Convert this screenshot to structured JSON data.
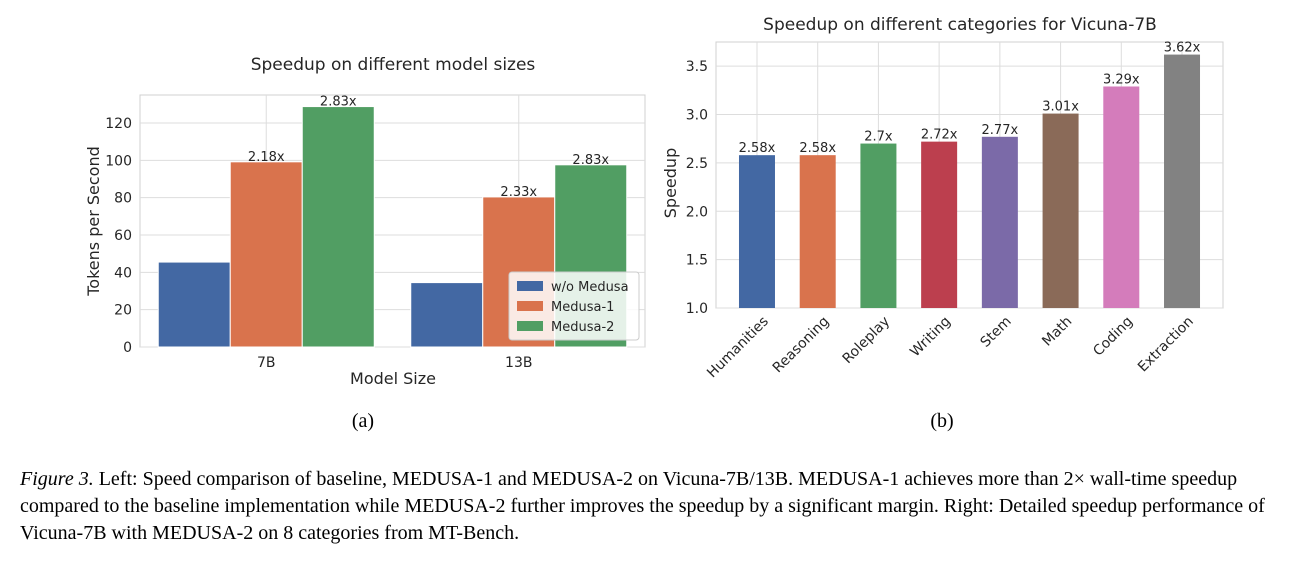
{
  "chart_data": [
    {
      "type": "bar",
      "title": "Speedup on different model sizes",
      "xlabel": "Model Size",
      "ylabel": "Tokens per Second",
      "categories": [
        "7B",
        "13B"
      ],
      "series": [
        {
          "name": "w/o Medusa",
          "color": "#4368a3",
          "values": [
            45.5,
            34.5
          ],
          "labels": [
            "",
            ""
          ]
        },
        {
          "name": "Medusa-1",
          "color": "#d9734d",
          "values": [
            99.2,
            80.4
          ],
          "labels": [
            "2.18x",
            "2.33x"
          ]
        },
        {
          "name": "Medusa-2",
          "color": "#519e63",
          "values": [
            128.8,
            97.6
          ],
          "labels": [
            "2.83x",
            "2.83x"
          ]
        }
      ],
      "ylim": [
        0,
        135
      ],
      "yticks": [
        0,
        20,
        40,
        60,
        80,
        100,
        120
      ],
      "grid": true,
      "legend": "lower-right",
      "sublabel": "(a)"
    },
    {
      "type": "bar",
      "title": "Speedup on different categories for Vicuna-7B",
      "xlabel": "",
      "ylabel": "Speedup",
      "categories": [
        "Humanities",
        "Reasoning",
        "Roleplay",
        "Writing",
        "Stem",
        "Math",
        "Coding",
        "Extraction"
      ],
      "values": [
        2.58,
        2.58,
        2.7,
        2.72,
        2.77,
        3.01,
        3.29,
        3.62
      ],
      "labels": [
        "2.58x",
        "2.58x",
        "2.7x",
        "2.72x",
        "2.77x",
        "3.01x",
        "3.29x",
        "3.62x"
      ],
      "colors": [
        "#4368a3",
        "#d9734d",
        "#519e63",
        "#bc3f4e",
        "#7b6aa8",
        "#8a6a58",
        "#d47cbb",
        "#828282"
      ],
      "ylim": [
        1.0,
        3.75
      ],
      "yticks": [
        "1.0",
        "1.5",
        "2.0",
        "2.5",
        "3.0",
        "3.5"
      ],
      "grid": true,
      "sublabel": "(b)"
    }
  ],
  "caption": {
    "fig_label": "Figure 3.",
    "text": "Left: Speed comparison of baseline, MEDUSA-1 and MEDUSA-2 on Vicuna-7B/13B. MEDUSA-1 achieves more than 2× wall-time speedup compared to the baseline implementation while MEDUSA-2 further improves the speedup by a significant margin. Right: Detailed speedup performance of Vicuna-7B with MEDUSA-2 on 8 categories from MT-Bench."
  }
}
